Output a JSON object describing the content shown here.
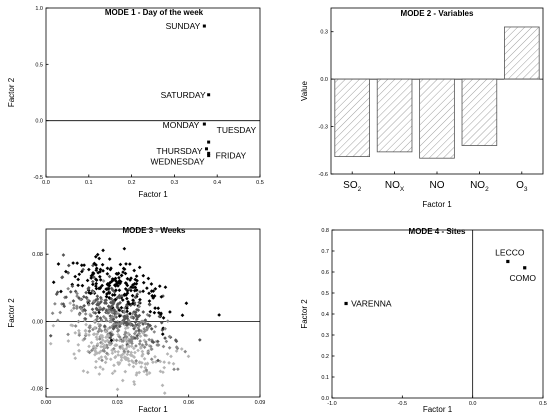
{
  "chart_data": [
    {
      "type": "scatter",
      "title": "MODE 1 - Day of  the week",
      "xlabel": "Factor 1",
      "ylabel": "Factor 2",
      "xlim": [
        0.0,
        0.5
      ],
      "ylim": [
        -0.5,
        1.0
      ],
      "xticks": [
        "0.0",
        "0.1",
        "0.2",
        "0.3",
        "0.4",
        "0.5"
      ],
      "yticks": [
        "-0.5",
        "0.0",
        "0.5",
        "1.0"
      ],
      "zero_line": true,
      "points": [
        {
          "label": "SUNDAY",
          "x": 0.37,
          "y": 0.84
        },
        {
          "label": "SATURDAY",
          "x": 0.38,
          "y": 0.23
        },
        {
          "label": "MONDAY",
          "x": 0.37,
          "y": -0.03
        },
        {
          "label": "TUESDAY",
          "x": 0.38,
          "y": -0.19
        },
        {
          "label": "THURSDAY",
          "x": 0.375,
          "y": -0.25
        },
        {
          "label": "FRIDAY",
          "x": 0.38,
          "y": -0.29
        },
        {
          "label": "WEDNESDAY",
          "x": 0.38,
          "y": -0.31
        }
      ]
    },
    {
      "type": "bar",
      "title": "MODE 2 - Variables",
      "xlabel": "Factor 1",
      "ylabel": "Value",
      "ylim": [
        -0.6,
        0.45
      ],
      "yticks": [
        "-0.6",
        "-0.3",
        "0.0",
        "0.3"
      ],
      "categories": [
        {
          "base": "SO",
          "sub": "2"
        },
        {
          "base": "NO",
          "sub": "X"
        },
        {
          "base": "NO",
          "sub": ""
        },
        {
          "base": "NO",
          "sub": "2"
        },
        {
          "base": "O",
          "sub": "3"
        }
      ],
      "values": [
        -0.49,
        -0.46,
        -0.5,
        -0.42,
        0.33
      ],
      "fill": "hatched"
    },
    {
      "type": "scatter",
      "title": "MODE 3 - Weeks",
      "xlabel": "Factor 1",
      "ylabel": "Factor 2",
      "xlim": [
        0.0,
        0.09
      ],
      "ylim": [
        -0.09,
        0.11
      ],
      "xticks": [
        "0.00",
        "0.03",
        "0.06",
        "0.09"
      ],
      "yticks": [
        "-0.08",
        "0.00",
        "0.08"
      ],
      "zero_line": true,
      "shades": [
        "#000000",
        "#555555",
        "#888888",
        "#b5b5b5"
      ],
      "n_points": 800
    },
    {
      "type": "scatter",
      "title": "MODE 4 - Sites",
      "xlabel": "Factor 1",
      "ylabel": "Factor 2",
      "xlim": [
        -1.0,
        0.5
      ],
      "ylim": [
        0.0,
        0.8
      ],
      "xticks": [
        "-1.0",
        "-0.5",
        "0.0",
        "0.5"
      ],
      "yticks": [
        "0.0",
        "0.1",
        "0.2",
        "0.3",
        "0.4",
        "0.5",
        "0.6",
        "0.7",
        "0.8"
      ],
      "vertical_zero_line": true,
      "points": [
        {
          "label": "VARENNA",
          "x": -0.9,
          "y": 0.45
        },
        {
          "label": "LECCO",
          "x": 0.25,
          "y": 0.65
        },
        {
          "label": "COMO",
          "x": 0.37,
          "y": 0.62
        }
      ]
    }
  ]
}
